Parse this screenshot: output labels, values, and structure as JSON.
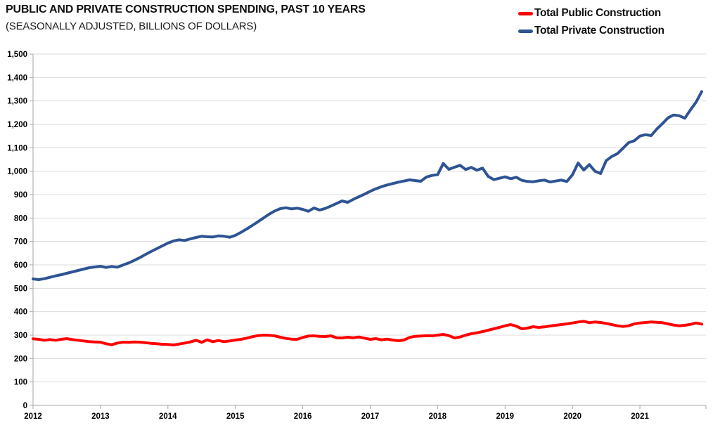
{
  "chart_data": {
    "type": "line",
    "title": "PUBLIC AND PRIVATE CONSTRUCTION SPENDING, PAST 10 YEARS",
    "subtitle": "(SEASONALLY ADJUSTED, BILLIONS OF DOLLARS)",
    "x_axis": {
      "unit": "month",
      "start": "2012-01",
      "end": "2021-12",
      "tick_labels": [
        "2012",
        "2013",
        "2014",
        "2015",
        "2016",
        "2017",
        "2018",
        "2019",
        "2020",
        "2021"
      ]
    },
    "y_axis": {
      "min": 0,
      "max": 1500,
      "step": 100,
      "tick_labels": [
        "0",
        "100",
        "200",
        "300",
        "400",
        "500",
        "600",
        "700",
        "800",
        "900",
        "1,000",
        "1,100",
        "1,200",
        "1,300",
        "1,400",
        "1,500"
      ]
    },
    "grid": true,
    "legend_position": "top-right",
    "colors": {
      "public": "#ff0000",
      "private": "#2e5493",
      "grid": "#dcdcdc",
      "axis": "#a6a6a6"
    },
    "series": [
      {
        "name": "Total Public Construction",
        "color": "#ff0000",
        "values": [
          284,
          282,
          278,
          281,
          278,
          282,
          285,
          281,
          278,
          275,
          272,
          271,
          270,
          263,
          259,
          266,
          270,
          269,
          271,
          270,
          268,
          265,
          263,
          261,
          260,
          258,
          262,
          266,
          271,
          278,
          269,
          280,
          272,
          277,
          272,
          275,
          279,
          282,
          287,
          293,
          298,
          300,
          299,
          297,
          291,
          286,
          283,
          282,
          290,
          296,
          297,
          295,
          294,
          297,
          289,
          288,
          291,
          289,
          292,
          287,
          282,
          285,
          280,
          283,
          279,
          276,
          279,
          290,
          295,
          296,
          298,
          297,
          300,
          303,
          298,
          288,
          292,
          300,
          306,
          310,
          315,
          321,
          327,
          333,
          340,
          345,
          338,
          327,
          330,
          336,
          333,
          335,
          339,
          342,
          345,
          348,
          352,
          356,
          359,
          353,
          356,
          354,
          350,
          345,
          340,
          337,
          340,
          348,
          352,
          354,
          356,
          355,
          353,
          348,
          343,
          340,
          342,
          346,
          352,
          347
        ]
      },
      {
        "name": "Total Private Construction",
        "color": "#2e5493",
        "values": [
          540,
          537,
          541,
          547,
          553,
          558,
          564,
          570,
          576,
          582,
          588,
          591,
          594,
          589,
          593,
          590,
          599,
          608,
          619,
          631,
          644,
          657,
          669,
          681,
          693,
          702,
          707,
          704,
          711,
          717,
          722,
          720,
          719,
          724,
          722,
          718,
          726,
          739,
          753,
          768,
          784,
          800,
          816,
          830,
          840,
          844,
          839,
          842,
          837,
          829,
          843,
          834,
          841,
          851,
          862,
          873,
          867,
          880,
          891,
          902,
          914,
          925,
          934,
          941,
          947,
          953,
          958,
          963,
          960,
          957,
          975,
          982,
          985,
          1033,
          1008,
          1017,
          1025,
          1007,
          1016,
          1004,
          1013,
          978,
          964,
          970,
          976,
          968,
          974,
          961,
          956,
          955,
          959,
          962,
          954,
          958,
          962,
          956,
          985,
          1035,
          1005,
          1028,
          1000,
          990,
          1045,
          1063,
          1075,
          1098,
          1122,
          1130,
          1150,
          1156,
          1152,
          1180,
          1203,
          1228,
          1240,
          1237,
          1226,
          1262,
          1295,
          1340
        ]
      }
    ]
  }
}
